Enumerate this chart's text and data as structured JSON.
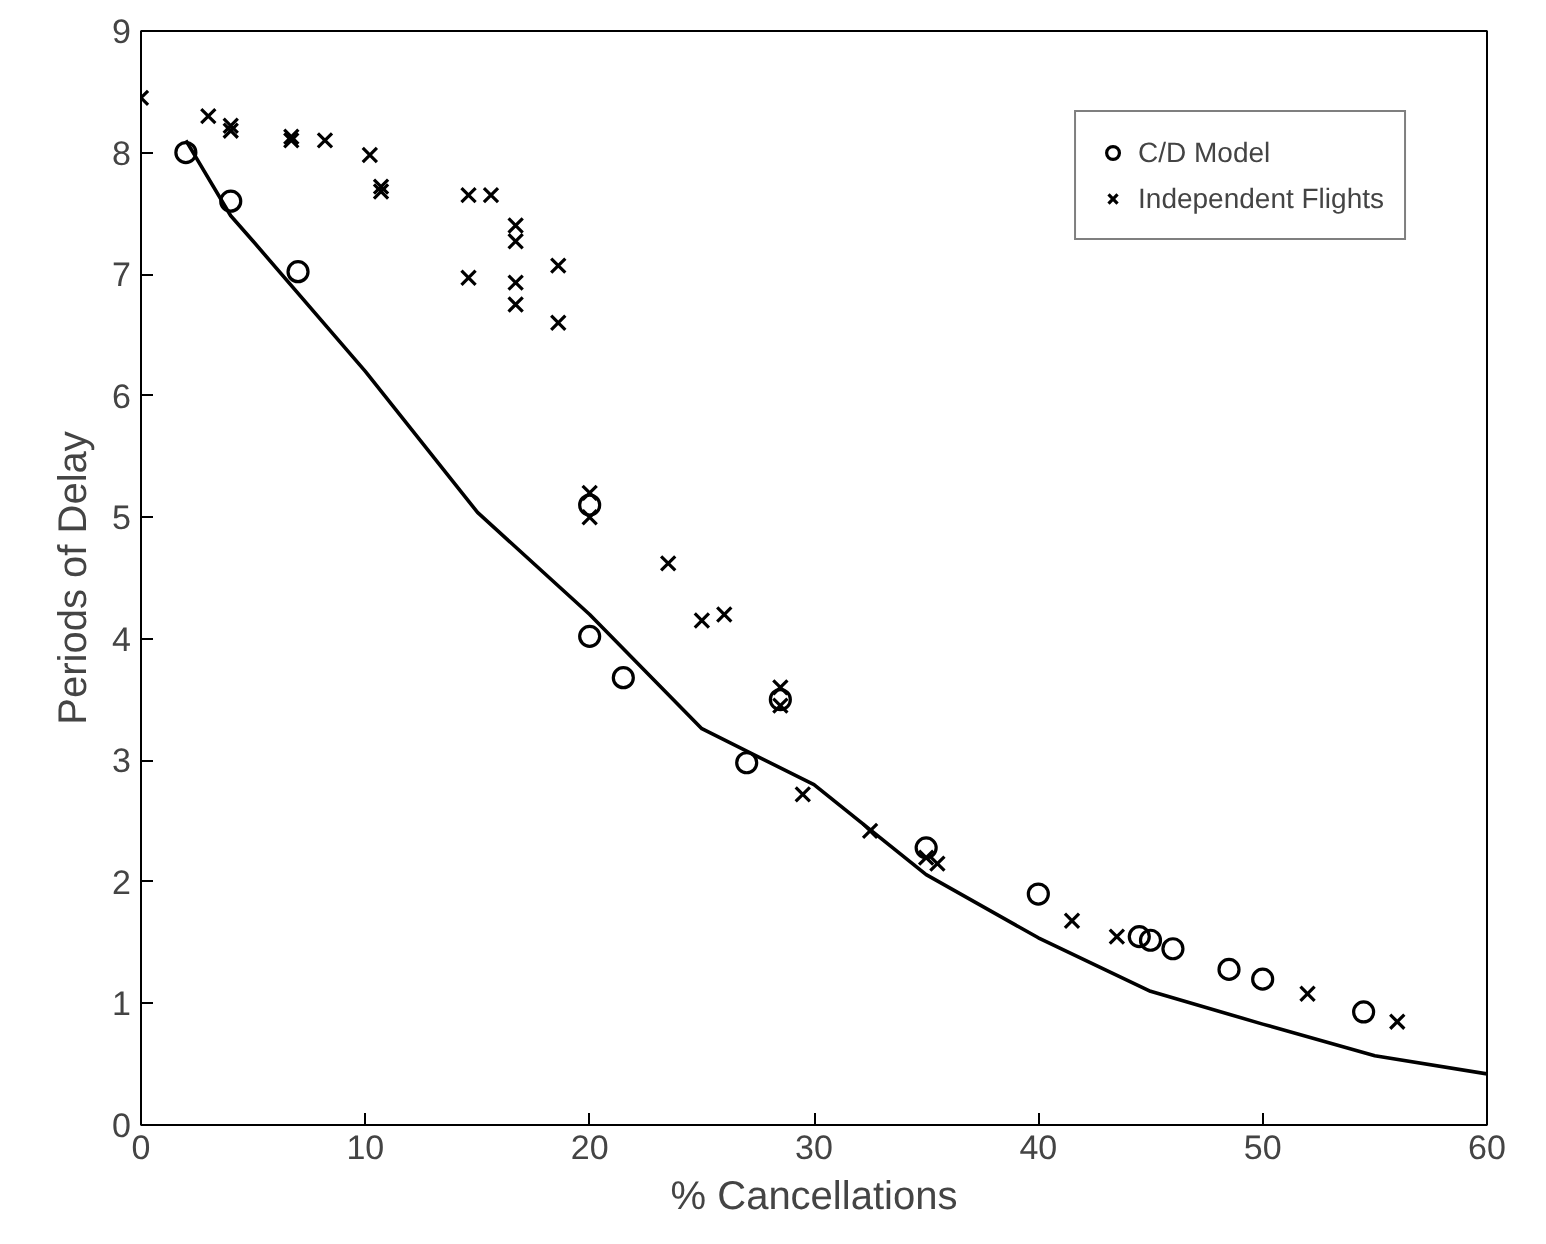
{
  "chart_data": {
    "type": "scatter",
    "xlabel": "% Cancellations",
    "ylabel": "Periods of Delay",
    "xlim": [
      0,
      60
    ],
    "ylim": [
      0,
      9
    ],
    "xticks": [
      0,
      10,
      20,
      30,
      40,
      50,
      60
    ],
    "yticks": [
      0,
      1,
      2,
      3,
      4,
      5,
      6,
      7,
      8,
      9
    ],
    "grid": false,
    "legend": "top right",
    "series": [
      {
        "name": "C/D Model",
        "marker": "circle",
        "color": "#000000",
        "x": [
          2,
          4,
          7,
          20,
          20,
          21.5,
          27,
          28.5,
          35,
          40,
          44.5,
          45,
          46,
          48.5,
          50,
          54.5
        ],
        "values": [
          8.0,
          7.6,
          7.02,
          5.1,
          4.02,
          3.68,
          2.98,
          3.5,
          2.28,
          1.9,
          1.55,
          1.52,
          1.45,
          1.28,
          1.2,
          0.93
        ]
      },
      {
        "name": "Independent Flights",
        "marker": "cross",
        "color": "#000000",
        "x": [
          0,
          3,
          4,
          4,
          6.7,
          6.7,
          8.2,
          10.2,
          10.7,
          10.7,
          14.6,
          15.6,
          14.6,
          16.7,
          16.7,
          16.7,
          16.7,
          18.6,
          18.6,
          20,
          20,
          23.5,
          25,
          26,
          28.5,
          28.5,
          29.5,
          32.5,
          35,
          35.5,
          41.5,
          43.5,
          52,
          56
        ],
        "values": [
          8.45,
          8.3,
          8.22,
          8.18,
          8.13,
          8.1,
          8.1,
          7.98,
          7.72,
          7.68,
          7.65,
          7.65,
          6.97,
          7.4,
          7.27,
          6.93,
          6.75,
          7.07,
          6.6,
          5.2,
          5.0,
          4.62,
          4.15,
          4.2,
          3.6,
          3.45,
          2.72,
          2.42,
          2.2,
          2.15,
          1.68,
          1.55,
          1.08,
          0.85
        ]
      },
      {
        "type": "line",
        "line_style": "solid",
        "color": "#000000",
        "x": [
          2,
          4,
          5,
          10,
          15,
          20,
          25,
          30,
          35,
          40,
          45,
          50,
          55,
          60
        ],
        "values": [
          8.1,
          7.48,
          7.27,
          6.2,
          5.04,
          4.2,
          3.26,
          2.8,
          2.06,
          1.54,
          1.1,
          0.83,
          0.57,
          0.42
        ]
      }
    ]
  }
}
